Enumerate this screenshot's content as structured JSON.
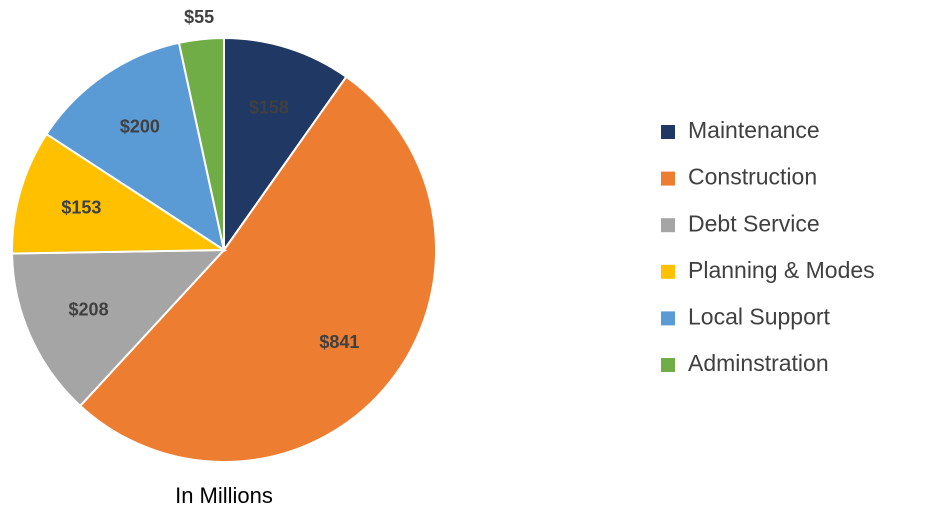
{
  "chart_data": {
    "type": "pie",
    "title": "In Millions",
    "categories": [
      "Maintenance",
      "Construction",
      "Debt Service",
      "Planning & Modes",
      "Local Support",
      "Adminstration"
    ],
    "values": [
      158,
      841,
      208,
      153,
      200,
      55
    ],
    "value_labels": [
      "$158",
      "$841",
      "$208",
      "$153",
      "$200",
      "$55"
    ],
    "colors": [
      "#203864",
      "#ed7d31",
      "#a5a5a5",
      "#ffc000",
      "#5b9bd5",
      "#70ad47"
    ],
    "legend": "right"
  }
}
